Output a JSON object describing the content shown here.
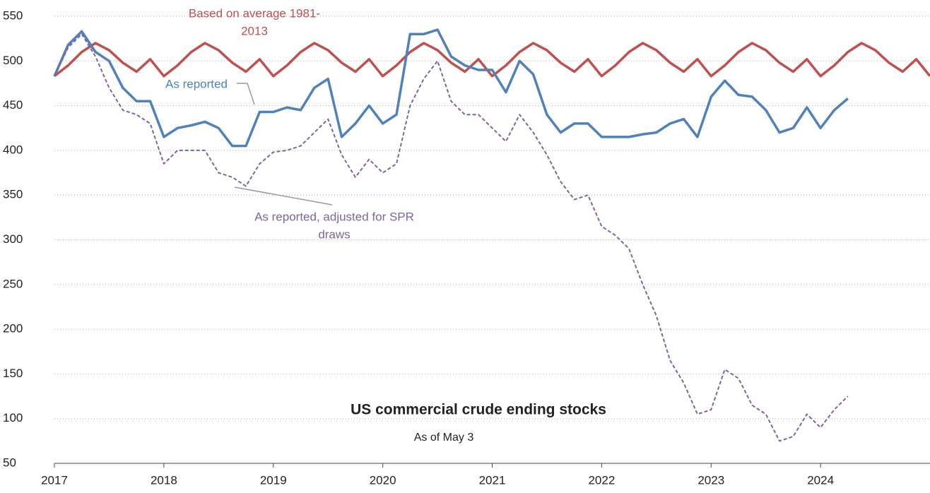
{
  "chart_data": {
    "type": "line",
    "title": "US commercial crude ending stocks",
    "subtitle": "As of May 3",
    "x": [
      2017,
      2017.125,
      2017.25,
      2017.375,
      2017.5,
      2017.625,
      2017.75,
      2017.875,
      2018,
      2018.125,
      2018.25,
      2018.375,
      2018.5,
      2018.625,
      2018.75,
      2018.875,
      2019,
      2019.125,
      2019.25,
      2019.375,
      2019.5,
      2019.625,
      2019.75,
      2019.875,
      2020,
      2020.125,
      2020.25,
      2020.375,
      2020.5,
      2020.625,
      2020.75,
      2020.875,
      2021,
      2021.125,
      2021.25,
      2021.375,
      2021.5,
      2021.625,
      2021.75,
      2021.875,
      2022,
      2022.125,
      2022.25,
      2022.375,
      2022.5,
      2022.625,
      2022.75,
      2022.875,
      2023,
      2023.125,
      2023.25,
      2023.375,
      2023.5,
      2023.625,
      2023.75,
      2023.875,
      2024,
      2024.125,
      2024.25,
      2024.375,
      2024.5,
      2024.625,
      2024.75,
      2024.875,
      2025
    ],
    "series": [
      {
        "name": [
          "Based on average 1981-",
          "2013"
        ],
        "color": "#c0504d",
        "dash": false,
        "values": [
          483,
          495,
          510,
          520,
          512,
          498,
          488,
          502,
          483,
          495,
          510,
          520,
          512,
          498,
          488,
          502,
          483,
          495,
          510,
          520,
          512,
          498,
          488,
          502,
          483,
          495,
          510,
          520,
          512,
          498,
          488,
          502,
          483,
          495,
          510,
          520,
          512,
          498,
          488,
          502,
          483,
          495,
          510,
          520,
          512,
          498,
          488,
          502,
          483,
          495,
          510,
          520,
          512,
          498,
          488,
          502,
          483,
          495,
          510,
          520,
          512,
          498,
          488,
          502,
          483
        ]
      },
      {
        "name": [
          "As reported"
        ],
        "color": "#4f81bd",
        "dash": false,
        "values": [
          483,
          518,
          533,
          510,
          500,
          470,
          455,
          455,
          415,
          425,
          428,
          432,
          425,
          405,
          405,
          443,
          443,
          448,
          445,
          470,
          480,
          415,
          430,
          450,
          430,
          440,
          530,
          530,
          535,
          505,
          495,
          490,
          490,
          465,
          500,
          485,
          440,
          420,
          430,
          430,
          415,
          415,
          415,
          418,
          420,
          430,
          435,
          415,
          460,
          478,
          462,
          460,
          445,
          420,
          425,
          448,
          425,
          445,
          458,
          null,
          null,
          null,
          null,
          null,
          null
        ]
      },
      {
        "name": [
          "As reported, adjusted for SPR",
          "draws"
        ],
        "color": "#8064a2",
        "dash": true,
        "values": [
          483,
          515,
          530,
          505,
          470,
          445,
          440,
          430,
          385,
          400,
          400,
          400,
          375,
          370,
          360,
          385,
          398,
          400,
          405,
          420,
          435,
          395,
          370,
          390,
          375,
          385,
          450,
          480,
          500,
          455,
          440,
          440,
          425,
          410,
          440,
          420,
          395,
          365,
          345,
          350,
          315,
          305,
          290,
          250,
          215,
          165,
          140,
          105,
          110,
          155,
          145,
          115,
          105,
          75,
          80,
          105,
          90,
          110,
          125,
          null,
          null,
          null,
          null,
          null,
          null
        ]
      }
    ],
    "xlim": [
      2017,
      2025
    ],
    "xticks": [
      2017,
      2018,
      2019,
      2020,
      2021,
      2022,
      2023,
      2024
    ],
    "ylim": [
      50,
      550
    ],
    "yticks": [
      50,
      100,
      150,
      200,
      250,
      300,
      350,
      400,
      450,
      500,
      550
    ],
    "grid": true
  }
}
